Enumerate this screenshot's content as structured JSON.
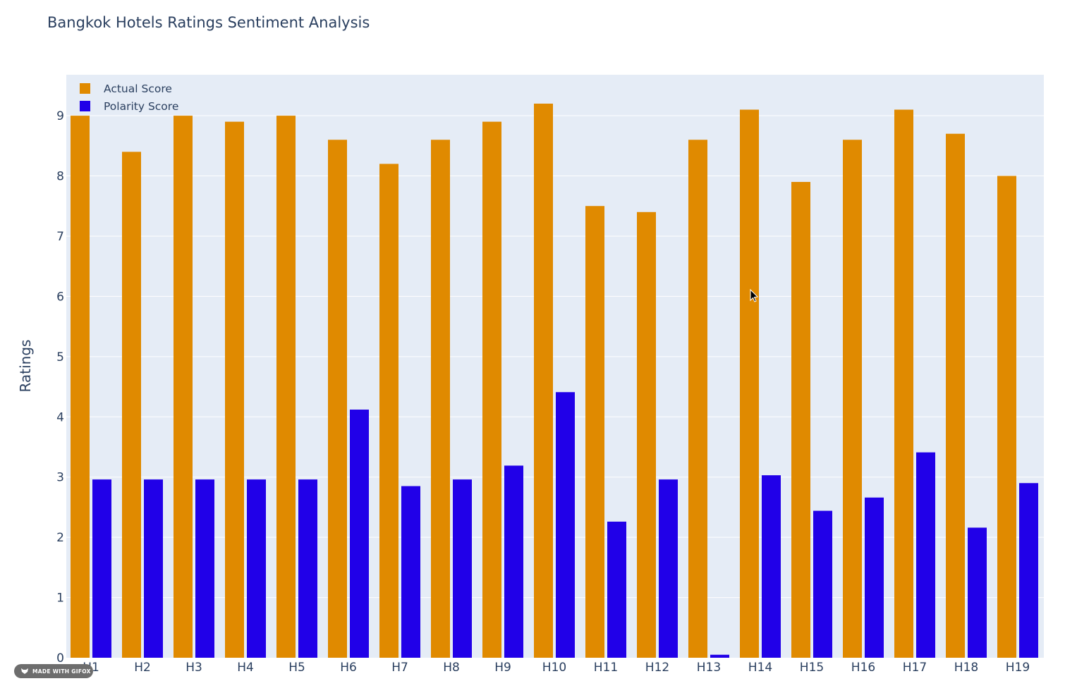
{
  "chart_data": {
    "type": "bar",
    "title": "Bangkok Hotels Ratings Sentiment Analysis",
    "xlabel": "",
    "ylabel": "Ratings",
    "ylim": [
      0,
      9.68
    ],
    "yticks": [
      0,
      1,
      2,
      3,
      4,
      5,
      6,
      7,
      8,
      9
    ],
    "grid": true,
    "legend_position": "top-left",
    "categories": [
      "H1",
      "H2",
      "H3",
      "H4",
      "H5",
      "H6",
      "H7",
      "H8",
      "H9",
      "H10",
      "H11",
      "H12",
      "H13",
      "H14",
      "H15",
      "H16",
      "H17",
      "H18",
      "H19"
    ],
    "series": [
      {
        "name": "Actual Score",
        "color": "#e08a00",
        "values": [
          9.0,
          8.4,
          9.0,
          8.9,
          9.0,
          8.6,
          8.2,
          8.6,
          8.9,
          9.2,
          7.5,
          7.4,
          8.6,
          9.1,
          7.9,
          8.6,
          9.1,
          8.7,
          8.0
        ]
      },
      {
        "name": "Polarity Score",
        "color": "#2100e8",
        "values": [
          2.96,
          2.96,
          2.96,
          2.96,
          2.96,
          4.12,
          2.85,
          2.96,
          3.19,
          4.41,
          2.26,
          2.96,
          0.05,
          3.03,
          2.44,
          2.66,
          3.41,
          2.16,
          2.9
        ]
      }
    ]
  },
  "colors": {
    "plot_bg": "#e5ecf6",
    "grid": "#ffffff",
    "text": "#2a3f5f"
  },
  "badge": {
    "text": "MADE WITH GIFOX"
  }
}
